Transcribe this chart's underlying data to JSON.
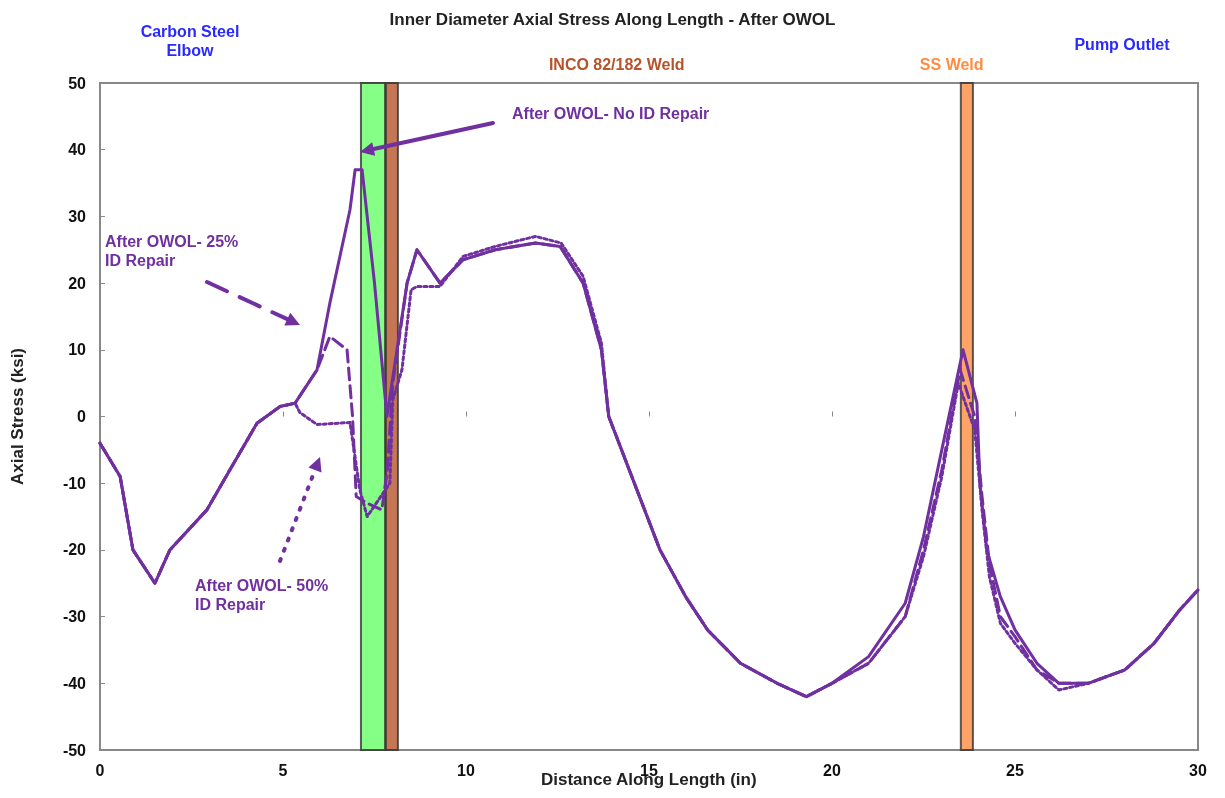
{
  "chart_data": {
    "type": "line",
    "title": "Inner Diameter Axial Stress Along Length - After OWOL",
    "xlabel": "Distance Along Length (in)",
    "ylabel": "Axial Stress (ksi)",
    "xlim": [
      0,
      30
    ],
    "xticks": [
      0,
      5,
      10,
      15,
      20,
      25,
      30
    ],
    "ylim": [
      -50,
      50
    ],
    "yticks": [
      -50,
      -40,
      -30,
      -20,
      -10,
      0,
      10,
      20,
      30,
      40,
      50
    ],
    "grid": false,
    "series": [
      {
        "color": "#7030a0",
        "line_style": "solid",
        "x": [
          0,
          0.55,
          0.9,
          1.5,
          1.91,
          2.92,
          3.55,
          4.29,
          4.92,
          5.33,
          5.93,
          6.28,
          6.83,
          6.97,
          7.16,
          7.5,
          7.84,
          8.06,
          8.39,
          8.66,
          9.29,
          9.92,
          10.8,
          11.9,
          12.57,
          13.2,
          13.7,
          13.9,
          14.6,
          15.3,
          16,
          16.6,
          17.5,
          18.5,
          19.3,
          20,
          21,
          22,
          22.5,
          23,
          23.58,
          23.96,
          24.04,
          24.23,
          24.6,
          25,
          25.6,
          26.2,
          27,
          28,
          28.8,
          29.5,
          30
        ],
        "values": [
          -4,
          -9,
          -20,
          -25,
          -20,
          -14,
          -8,
          -1,
          1.5,
          2,
          7,
          17,
          31,
          37,
          37,
          20,
          0,
          8,
          20,
          25,
          20,
          23.5,
          25,
          26,
          25.5,
          20,
          10,
          0,
          -10,
          -20,
          -27,
          -32,
          -37,
          -40,
          -42,
          -40,
          -36,
          -28,
          -18,
          -5,
          10,
          2,
          -10,
          -20,
          -27,
          -32,
          -37,
          -40,
          -40,
          -38,
          -34,
          -29,
          -26
        ]
      },
      {
        "color": "#7030a0",
        "line_style": "dashed",
        "x": [
          0,
          0.55,
          0.9,
          1.5,
          1.91,
          2.92,
          3.55,
          4.29,
          4.92,
          5.33,
          5.93,
          6.28,
          6.75,
          6.9,
          7.0,
          7.3,
          7.7,
          7.85,
          8.0,
          8.39,
          8.66,
          9.29,
          9.92,
          10.8,
          11.9,
          12.57,
          13.2,
          13.7,
          13.9,
          14.6,
          15.3,
          16,
          16.6,
          17.5,
          18.5,
          19.3,
          20,
          21,
          22,
          22.5,
          23,
          23.5,
          23.9,
          24.1,
          24.3,
          24.6,
          25,
          25.6,
          26.2,
          27,
          28,
          28.8,
          29.5,
          30
        ],
        "values": [
          -4,
          -9,
          -20,
          -25,
          -20,
          -14,
          -8,
          -1,
          1.5,
          2,
          7,
          12,
          10,
          0,
          -12,
          -13,
          -14,
          -8,
          5,
          20,
          25,
          20,
          23.5,
          25,
          26,
          25.5,
          20,
          10,
          0,
          -10,
          -20,
          -27,
          -32,
          -37,
          -40,
          -42,
          -40,
          -37,
          -30,
          -20,
          -8,
          7,
          0,
          -12,
          -22,
          -30,
          -33,
          -38,
          -40,
          -40,
          -38,
          -34,
          -29,
          -26
        ]
      },
      {
        "color": "#7030a0",
        "line_style": "dotted",
        "x": [
          0,
          0.55,
          0.9,
          1.5,
          1.91,
          2.92,
          3.55,
          4.29,
          4.92,
          5.33,
          5.46,
          5.93,
          6.83,
          7.1,
          7.3,
          7.92,
          8.0,
          8.25,
          8.5,
          8.66,
          9.29,
          9.92,
          10.8,
          11.9,
          12.6,
          13.2,
          13.7,
          13.9,
          14.6,
          15.3,
          16,
          16.6,
          17.5,
          18.5,
          19.3,
          20,
          21,
          22,
          22.5,
          23,
          23.45,
          23.9,
          24.1,
          24.3,
          24.6,
          25,
          25.6,
          26.2,
          27,
          28,
          28.8,
          29.5,
          30
        ],
        "values": [
          -4,
          -9,
          -20,
          -25,
          -20,
          -14,
          -8,
          -1,
          1.5,
          2,
          0.6,
          -1.2,
          -0.9,
          -11,
          -15,
          -10,
          2.5,
          7,
          19,
          19.5,
          19.5,
          24,
          25.5,
          27,
          26,
          21,
          11,
          0,
          -10,
          -20,
          -27,
          -32,
          -37,
          -40,
          -42,
          -40,
          -37,
          -30,
          -21,
          -9,
          5,
          -2,
          -14,
          -24,
          -31,
          -34,
          -38,
          -41,
          -40,
          -38,
          -34,
          -29,
          -26
        ]
      }
    ],
    "bands": [
      {
        "axis": "x",
        "from": 7.13,
        "to": 7.79,
        "label": null,
        "color": "#66ff66"
      },
      {
        "axis": "x",
        "from": 7.81,
        "to": 8.14,
        "label": "INCO 82/182 Weld",
        "color": "#b5542a"
      },
      {
        "axis": "x",
        "from": 23.52,
        "to": 23.85,
        "label": "SS Weld",
        "color": "#ff8c40"
      }
    ],
    "annotations": [
      "Carbon Steel Elbow",
      "Pump Outlet",
      "After OWOL- No ID Repair",
      "After OWOL- 25% ID Repair",
      "After OWOL- 50% ID Repair"
    ]
  }
}
